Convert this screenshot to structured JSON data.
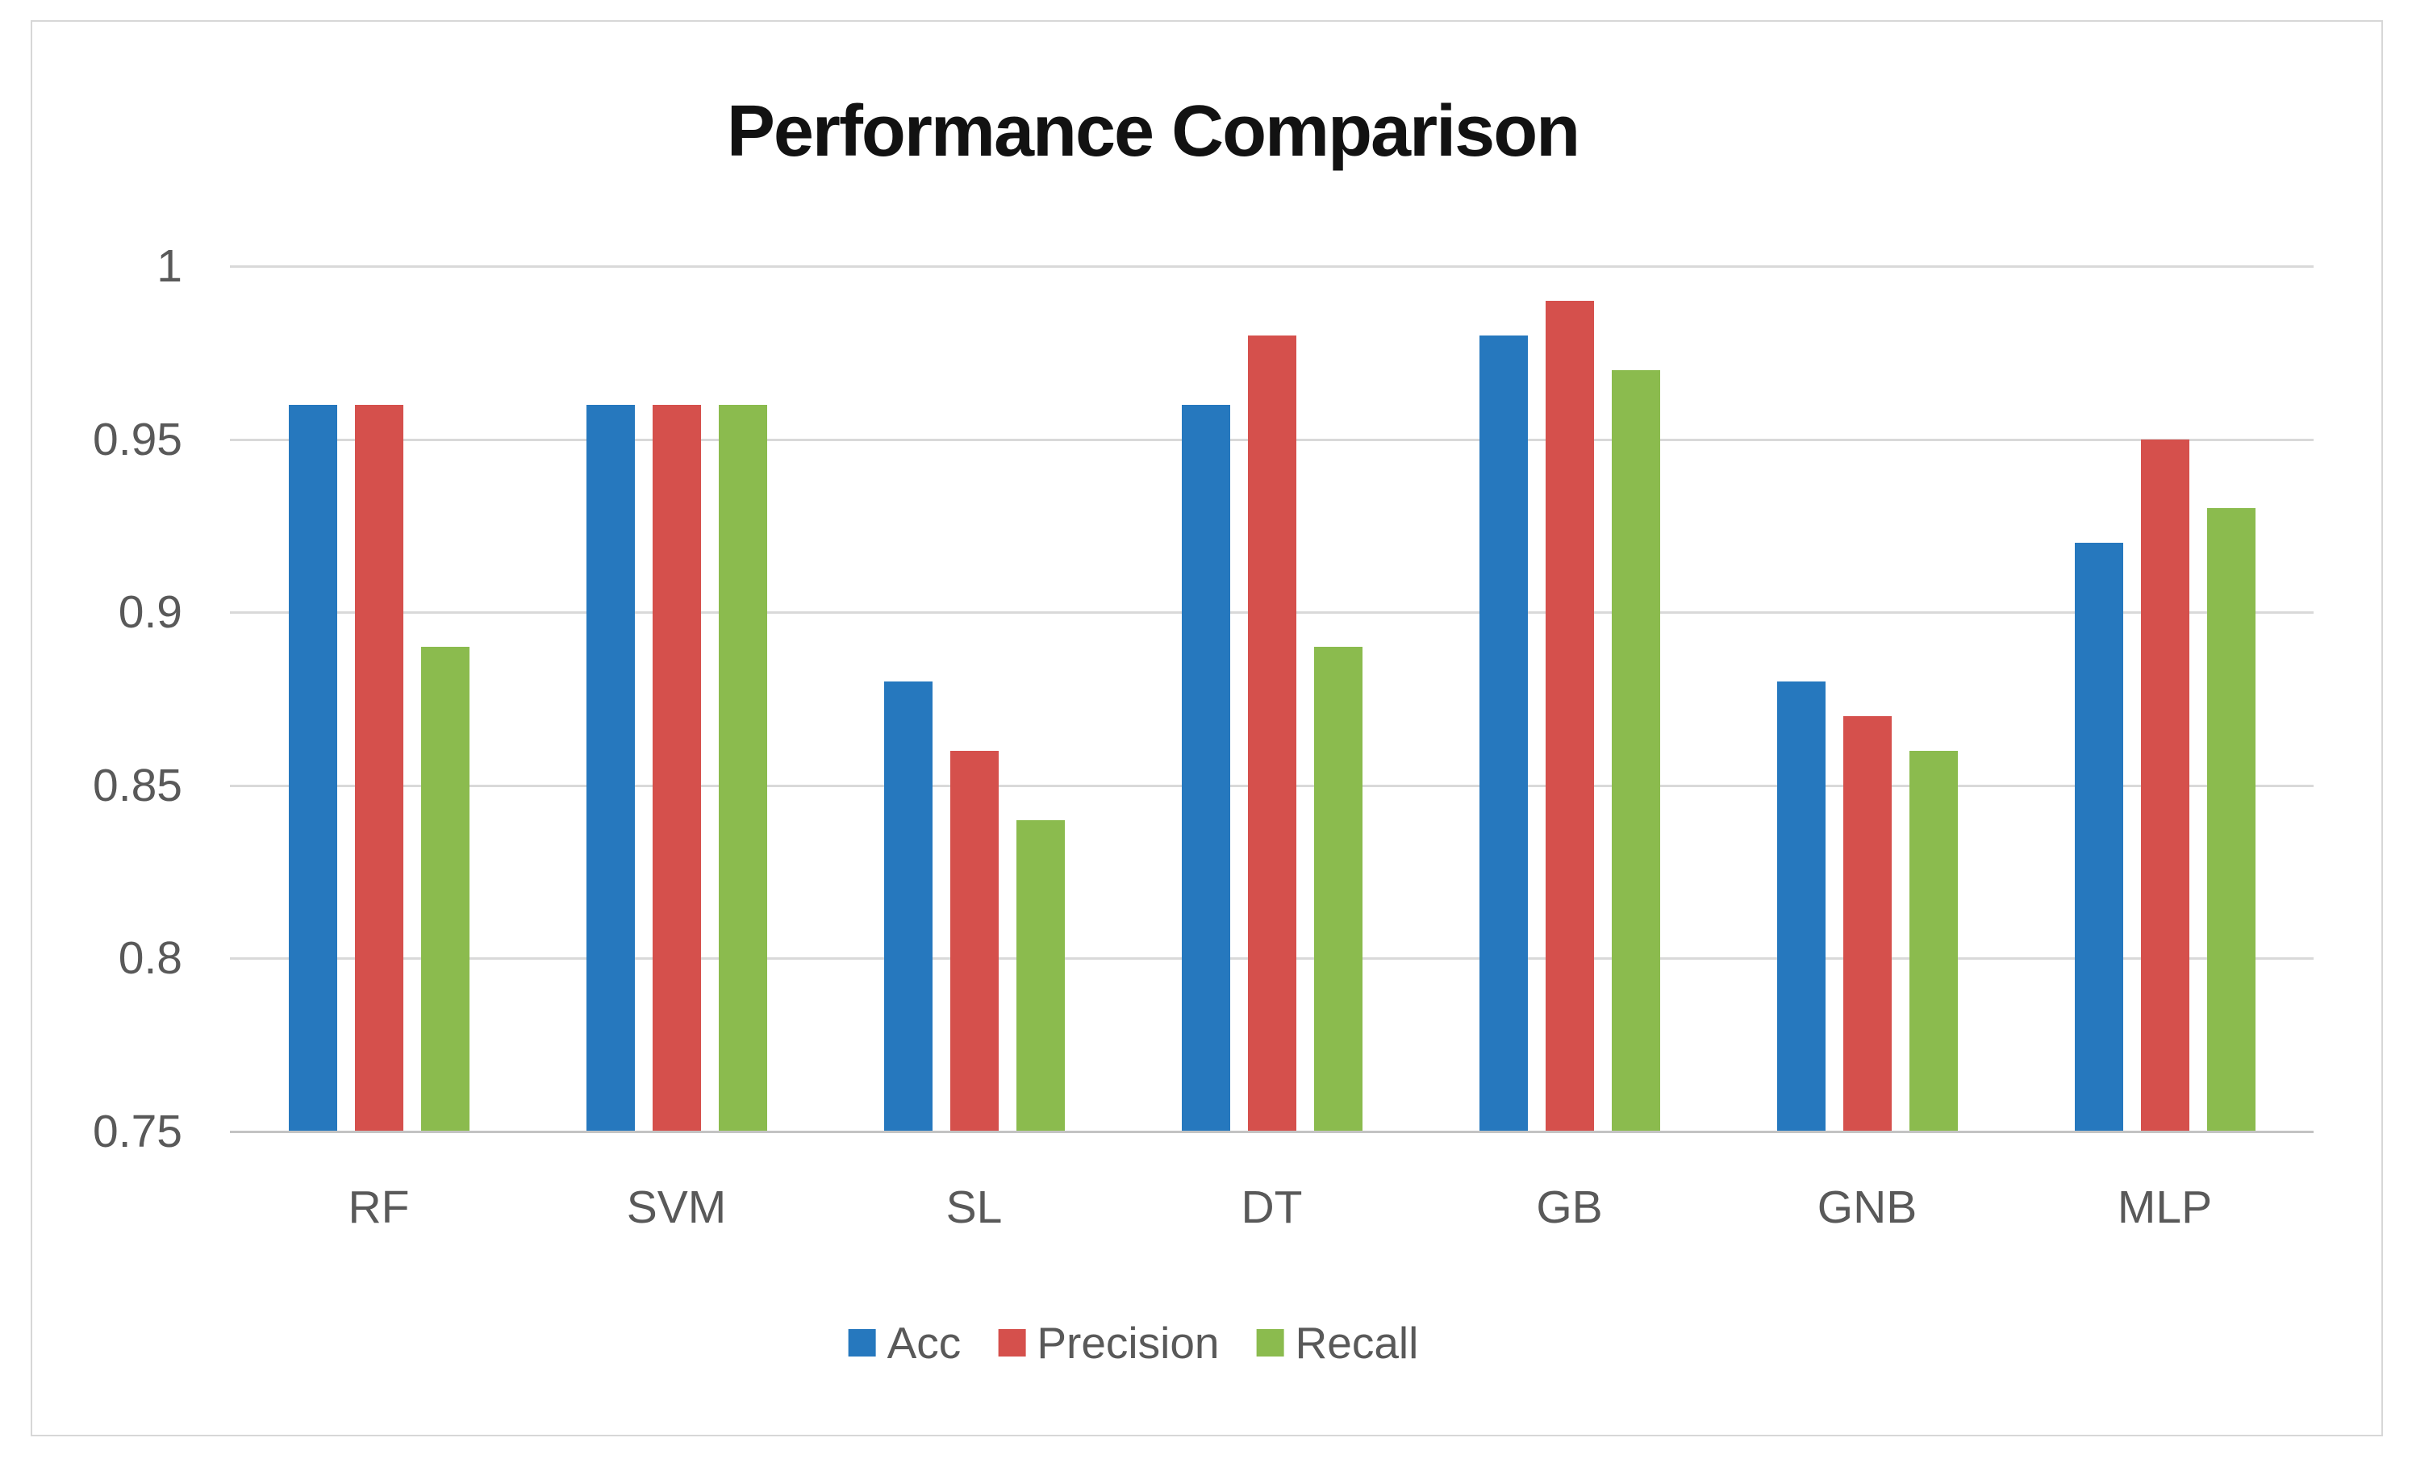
{
  "title": "Performance Comparison",
  "chart_data": {
    "type": "bar",
    "title": "Performance Comparison",
    "xlabel": "",
    "ylabel": "",
    "categories": [
      "RF",
      "SVM",
      "SL",
      "DT",
      "GB",
      "GNB",
      "MLP"
    ],
    "series": [
      {
        "name": "Acc",
        "color": "#2678be",
        "values": [
          0.96,
          0.96,
          0.88,
          0.96,
          0.98,
          0.88,
          0.92
        ]
      },
      {
        "name": "Precision",
        "color": "#d5504c",
        "values": [
          0.96,
          0.96,
          0.86,
          0.98,
          0.99,
          0.87,
          0.95
        ]
      },
      {
        "name": "Recall",
        "color": "#8bbb4e",
        "values": [
          0.89,
          0.96,
          0.84,
          0.89,
          0.97,
          0.86,
          0.93
        ]
      }
    ],
    "ylim": [
      0.75,
      1.0
    ],
    "yticks": [
      1,
      0.95,
      0.9,
      0.85,
      0.8,
      0.75
    ],
    "ytick_labels": [
      "1",
      "0.95",
      "0.9",
      "0.85",
      "0.8",
      "0.75"
    ],
    "grid": true,
    "legend_position": "bottom"
  },
  "colors": {
    "background": "#ffffff",
    "frame_border": "#d7d7d7",
    "gridline": "#d9d9d9",
    "axis_line": "#c3c3c3",
    "label_text": "#595959",
    "title_text": "#121212"
  }
}
